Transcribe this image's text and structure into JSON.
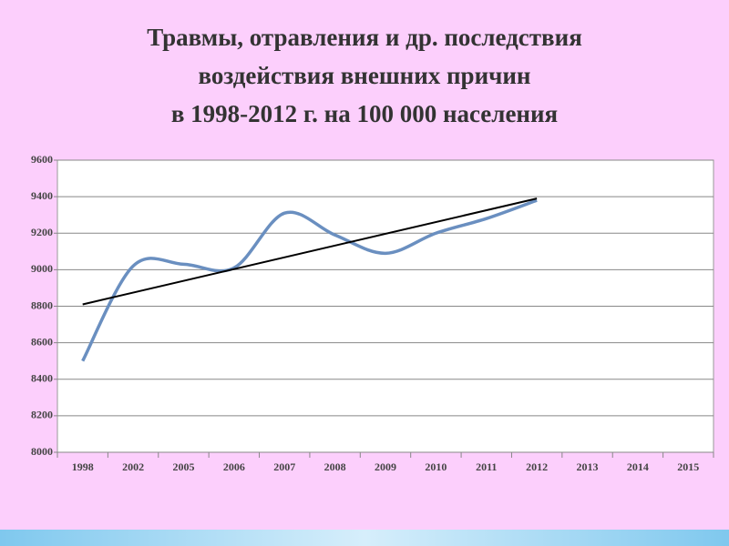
{
  "chart_data": {
    "type": "line",
    "title": [
      "Травмы, отравления и др. последствия",
      "воздействия внешних причин",
      "в 1998-2012 г. на 100 000 населения"
    ],
    "categories": [
      "1998",
      "2002",
      "2005",
      "2006",
      "2007",
      "2008",
      "2009",
      "2010",
      "2011",
      "2012",
      "2013",
      "2014",
      "2015"
    ],
    "values": [
      8500,
      9020,
      9030,
      9010,
      9310,
      9190,
      9090,
      9200,
      9280,
      9380,
      null,
      null,
      null
    ],
    "color": "#6a8fc0",
    "trendline": {
      "color": "#000000",
      "values": [
        8810,
        9390
      ]
    },
    "ylim": [
      8000,
      9600
    ],
    "yticks": [
      8000,
      8200,
      8400,
      8600,
      8800,
      9000,
      9200,
      9400,
      9600
    ],
    "grid": true
  }
}
